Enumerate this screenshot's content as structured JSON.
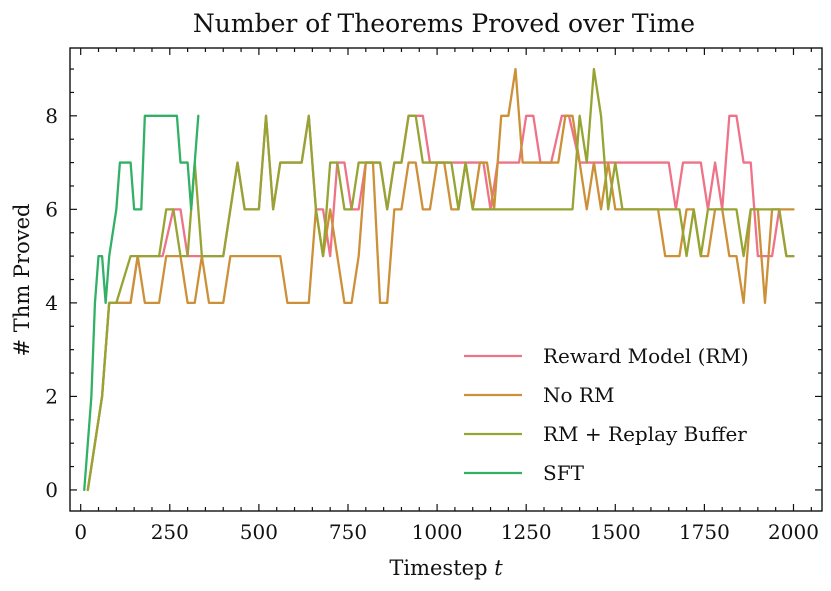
{
  "chart_data": {
    "type": "line",
    "title": "Number of Theorems Proved over Time",
    "xlabel": "Timestep t",
    "ylabel": "# Thm Proved",
    "xlim": [
      -30,
      2080
    ],
    "ylim": [
      -0.45,
      9.45
    ],
    "xticks": [
      0,
      250,
      500,
      750,
      1000,
      1250,
      1500,
      1750,
      2000
    ],
    "yticks": [
      0,
      2,
      4,
      6,
      8
    ],
    "grid": false,
    "legend_position": "lower-right",
    "series": [
      {
        "name": "Reward Model (RM)",
        "color": "#ee7389",
        "points": [
          [
            20,
            0
          ],
          [
            40,
            1
          ],
          [
            60,
            2
          ],
          [
            80,
            4
          ],
          [
            100,
            4
          ],
          [
            140,
            4
          ],
          [
            160,
            5
          ],
          [
            200,
            5
          ],
          [
            230,
            5
          ],
          [
            260,
            6
          ],
          [
            280,
            6
          ],
          [
            300,
            5
          ],
          [
            320,
            5
          ],
          [
            340,
            5
          ],
          [
            380,
            5
          ],
          [
            400,
            5
          ],
          [
            420,
            6
          ],
          [
            440,
            7
          ],
          [
            460,
            6
          ],
          [
            500,
            6
          ],
          [
            520,
            8
          ],
          [
            540,
            6
          ],
          [
            560,
            7
          ],
          [
            620,
            7
          ],
          [
            640,
            8
          ],
          [
            660,
            6
          ],
          [
            680,
            6
          ],
          [
            700,
            5
          ],
          [
            720,
            7
          ],
          [
            740,
            7
          ],
          [
            760,
            6
          ],
          [
            780,
            6
          ],
          [
            800,
            7
          ],
          [
            840,
            7
          ],
          [
            860,
            6
          ],
          [
            880,
            7
          ],
          [
            900,
            7
          ],
          [
            920,
            8
          ],
          [
            940,
            8
          ],
          [
            960,
            8
          ],
          [
            980,
            7
          ],
          [
            1000,
            7
          ],
          [
            1050,
            7
          ],
          [
            1080,
            7
          ],
          [
            1100,
            7
          ],
          [
            1130,
            7
          ],
          [
            1150,
            6
          ],
          [
            1170,
            7
          ],
          [
            1200,
            7
          ],
          [
            1230,
            7
          ],
          [
            1250,
            8
          ],
          [
            1270,
            8
          ],
          [
            1290,
            7
          ],
          [
            1300,
            7
          ],
          [
            1320,
            7
          ],
          [
            1350,
            8
          ],
          [
            1370,
            8
          ],
          [
            1400,
            7
          ],
          [
            1500,
            7
          ],
          [
            1600,
            7
          ],
          [
            1650,
            7
          ],
          [
            1670,
            6
          ],
          [
            1690,
            7
          ],
          [
            1740,
            7
          ],
          [
            1760,
            6
          ],
          [
            1780,
            7
          ],
          [
            1800,
            6
          ],
          [
            1820,
            8
          ],
          [
            1840,
            8
          ],
          [
            1860,
            7
          ],
          [
            1880,
            7
          ],
          [
            1890,
            6
          ],
          [
            1900,
            5
          ],
          [
            1920,
            5
          ],
          [
            1940,
            5
          ],
          [
            1960,
            6
          ],
          [
            1980,
            5
          ],
          [
            2000,
            5
          ]
        ]
      },
      {
        "name": "No RM",
        "color": "#cc9039",
        "points": [
          [
            20,
            0
          ],
          [
            40,
            1
          ],
          [
            60,
            2
          ],
          [
            80,
            4
          ],
          [
            100,
            4
          ],
          [
            140,
            4
          ],
          [
            160,
            5
          ],
          [
            180,
            4
          ],
          [
            220,
            4
          ],
          [
            240,
            5
          ],
          [
            260,
            5
          ],
          [
            280,
            5
          ],
          [
            300,
            4
          ],
          [
            320,
            4
          ],
          [
            340,
            5
          ],
          [
            360,
            4
          ],
          [
            400,
            4
          ],
          [
            420,
            5
          ],
          [
            560,
            5
          ],
          [
            580,
            4
          ],
          [
            640,
            4
          ],
          [
            660,
            6
          ],
          [
            680,
            5
          ],
          [
            700,
            6
          ],
          [
            720,
            5
          ],
          [
            740,
            4
          ],
          [
            760,
            4
          ],
          [
            780,
            5
          ],
          [
            800,
            7
          ],
          [
            820,
            7
          ],
          [
            840,
            4
          ],
          [
            860,
            4
          ],
          [
            880,
            6
          ],
          [
            900,
            6
          ],
          [
            920,
            7
          ],
          [
            940,
            7
          ],
          [
            960,
            6
          ],
          [
            980,
            6
          ],
          [
            1000,
            7
          ],
          [
            1020,
            7
          ],
          [
            1040,
            6
          ],
          [
            1060,
            6
          ],
          [
            1080,
            7
          ],
          [
            1100,
            6
          ],
          [
            1120,
            7
          ],
          [
            1140,
            7
          ],
          [
            1160,
            6
          ],
          [
            1180,
            8
          ],
          [
            1200,
            8
          ],
          [
            1220,
            9
          ],
          [
            1240,
            7
          ],
          [
            1260,
            7
          ],
          [
            1300,
            7
          ],
          [
            1320,
            7
          ],
          [
            1340,
            7
          ],
          [
            1360,
            8
          ],
          [
            1380,
            8
          ],
          [
            1400,
            7
          ],
          [
            1420,
            6
          ],
          [
            1440,
            7
          ],
          [
            1460,
            6
          ],
          [
            1480,
            7
          ],
          [
            1500,
            6
          ],
          [
            1560,
            6
          ],
          [
            1600,
            6
          ],
          [
            1620,
            6
          ],
          [
            1640,
            5
          ],
          [
            1680,
            5
          ],
          [
            1700,
            6
          ],
          [
            1720,
            6
          ],
          [
            1740,
            5
          ],
          [
            1760,
            5
          ],
          [
            1780,
            6
          ],
          [
            1800,
            6
          ],
          [
            1820,
            5
          ],
          [
            1840,
            5
          ],
          [
            1860,
            4
          ],
          [
            1880,
            6
          ],
          [
            1900,
            6
          ],
          [
            1920,
            4
          ],
          [
            1940,
            6
          ],
          [
            1960,
            6
          ],
          [
            1980,
            6
          ],
          [
            2000,
            6
          ]
        ]
      },
      {
        "name": "RM + Replay Buffer",
        "color": "#96a434",
        "points": [
          [
            20,
            0
          ],
          [
            40,
            1
          ],
          [
            60,
            2
          ],
          [
            80,
            4
          ],
          [
            100,
            4
          ],
          [
            140,
            5
          ],
          [
            200,
            5
          ],
          [
            220,
            5
          ],
          [
            240,
            6
          ],
          [
            260,
            6
          ],
          [
            280,
            5
          ],
          [
            300,
            5
          ],
          [
            320,
            7
          ],
          [
            340,
            5
          ],
          [
            400,
            5
          ],
          [
            420,
            6
          ],
          [
            440,
            7
          ],
          [
            460,
            6
          ],
          [
            500,
            6
          ],
          [
            520,
            8
          ],
          [
            540,
            6
          ],
          [
            560,
            7
          ],
          [
            620,
            7
          ],
          [
            640,
            8
          ],
          [
            660,
            6
          ],
          [
            680,
            5
          ],
          [
            700,
            7
          ],
          [
            720,
            7
          ],
          [
            740,
            6
          ],
          [
            760,
            6
          ],
          [
            780,
            7
          ],
          [
            820,
            7
          ],
          [
            840,
            7
          ],
          [
            860,
            6
          ],
          [
            880,
            7
          ],
          [
            900,
            7
          ],
          [
            920,
            8
          ],
          [
            940,
            8
          ],
          [
            960,
            7
          ],
          [
            1000,
            7
          ],
          [
            1040,
            7
          ],
          [
            1060,
            6
          ],
          [
            1080,
            7
          ],
          [
            1100,
            6
          ],
          [
            1200,
            6
          ],
          [
            1300,
            6
          ],
          [
            1360,
            6
          ],
          [
            1380,
            6
          ],
          [
            1400,
            8
          ],
          [
            1420,
            7
          ],
          [
            1440,
            9
          ],
          [
            1460,
            8
          ],
          [
            1480,
            6
          ],
          [
            1500,
            7
          ],
          [
            1520,
            6
          ],
          [
            1560,
            6
          ],
          [
            1600,
            6
          ],
          [
            1640,
            6
          ],
          [
            1660,
            6
          ],
          [
            1680,
            6
          ],
          [
            1700,
            5
          ],
          [
            1720,
            6
          ],
          [
            1740,
            5
          ],
          [
            1760,
            6
          ],
          [
            1800,
            6
          ],
          [
            1840,
            6
          ],
          [
            1860,
            5
          ],
          [
            1880,
            6
          ],
          [
            1900,
            6
          ],
          [
            1920,
            6
          ],
          [
            1940,
            6
          ],
          [
            1960,
            6
          ],
          [
            1980,
            5
          ],
          [
            2000,
            5
          ]
        ]
      },
      {
        "name": "SFT",
        "color": "#32b166",
        "points": [
          [
            10,
            0
          ],
          [
            30,
            2
          ],
          [
            40,
            4
          ],
          [
            50,
            5
          ],
          [
            60,
            5
          ],
          [
            70,
            4
          ],
          [
            80,
            5
          ],
          [
            100,
            6
          ],
          [
            110,
            7
          ],
          [
            140,
            7
          ],
          [
            150,
            6
          ],
          [
            170,
            6
          ],
          [
            180,
            8
          ],
          [
            240,
            8
          ],
          [
            270,
            8
          ],
          [
            280,
            7
          ],
          [
            300,
            7
          ],
          [
            310,
            6
          ],
          [
            320,
            7
          ],
          [
            330,
            8
          ]
        ]
      }
    ]
  }
}
